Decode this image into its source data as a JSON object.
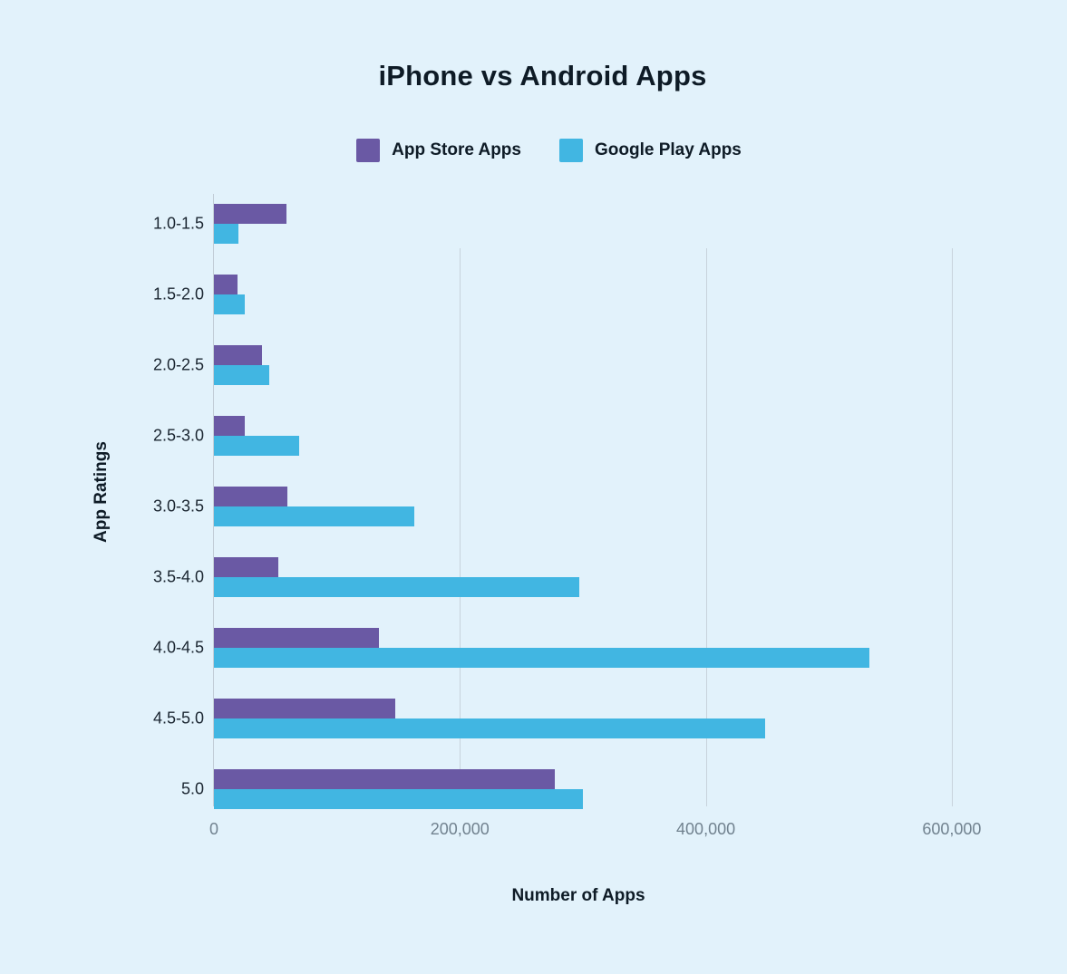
{
  "chart_data": {
    "type": "bar",
    "orientation": "horizontal",
    "title": "iPhone vs Android Apps",
    "xlabel": "Number of Apps",
    "ylabel": "App Ratings",
    "categories": [
      "1.0-1.5",
      "1.5-2.0",
      "2.0-2.5",
      "2.5-3.0",
      "3.0-3.5",
      "3.5-4.0",
      "4.0-4.5",
      "4.5-5.0",
      "5.0"
    ],
    "series": [
      {
        "name": "App Store Apps",
        "color": "#6A59A4",
        "values": [
          59000,
          19000,
          39000,
          25000,
          59500,
          52500,
          134000,
          147500,
          277000
        ]
      },
      {
        "name": "Google Play Apps",
        "color": "#41B6E2",
        "values": [
          19500,
          25000,
          45000,
          69000,
          163000,
          297000,
          533000,
          448000,
          300000
        ]
      }
    ],
    "x_axis": {
      "tick_labels": [
        "0",
        "200,000",
        "400,000",
        "600,000"
      ],
      "tick_values": [
        0,
        200000,
        400000,
        600000
      ],
      "max_value": 634000
    },
    "grid": "vertical gridlines at x ticks, drawn behind bars",
    "legend_position": "top-center"
  },
  "theme": {
    "background": "#E2F2FB",
    "text_dark": "#0E1B26",
    "category_text": "#1A2530",
    "tick_text": "#71828F",
    "grid_line": "#C8D3DC",
    "axis_line": "#C2CDD7"
  }
}
